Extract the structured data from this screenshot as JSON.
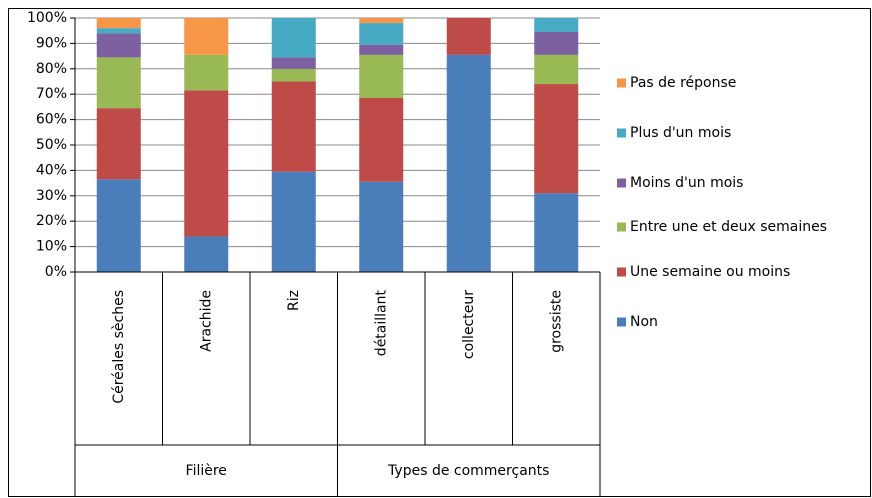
{
  "chart_data": {
    "type": "stacked-bar",
    "groups": [
      {
        "label": "Filière",
        "categories": [
          "Céréales sèches",
          "Arachide",
          "Riz"
        ]
      },
      {
        "label": "Types de commerçants",
        "categories": [
          "détaillant",
          "collecteur",
          "grossiste"
        ]
      }
    ],
    "series": [
      {
        "name": "Non",
        "color": "#4a7ebb",
        "values": [
          36.5,
          14,
          39.5,
          35.5,
          85.5,
          31
        ]
      },
      {
        "name": "Une semaine ou moins",
        "color": "#be4b48",
        "values": [
          28,
          57.5,
          35.5,
          33,
          14.5,
          43
        ]
      },
      {
        "name": "Entre une et deux semaines",
        "color": "#98b954",
        "values": [
          20,
          14,
          5,
          17,
          0,
          11.5
        ]
      },
      {
        "name": "Moins d'un mois",
        "color": "#7d60a0",
        "values": [
          9.5,
          0,
          4.5,
          4,
          0,
          9
        ]
      },
      {
        "name": "Plus d'un mois",
        "color": "#46aac5",
        "values": [
          2,
          0,
          15.5,
          8.5,
          0,
          5.5
        ]
      },
      {
        "name": "Pas de réponse",
        "color": "#f79646",
        "values": [
          4,
          14.5,
          0,
          2,
          0,
          0
        ]
      }
    ],
    "ylim": [
      0,
      100
    ],
    "yticks": [
      {
        "value": 0,
        "label": "0%"
      },
      {
        "value": 10,
        "label": "10%"
      },
      {
        "value": 20,
        "label": "20%"
      },
      {
        "value": 30,
        "label": "30%"
      },
      {
        "value": 40,
        "label": "40%"
      },
      {
        "value": 50,
        "label": "50%"
      },
      {
        "value": 60,
        "label": "60%"
      },
      {
        "value": 70,
        "label": "70%"
      },
      {
        "value": 80,
        "label": "80%"
      },
      {
        "value": 90,
        "label": "90%"
      },
      {
        "value": 100,
        "label": "100%"
      }
    ],
    "grid": true,
    "legend": "right"
  }
}
